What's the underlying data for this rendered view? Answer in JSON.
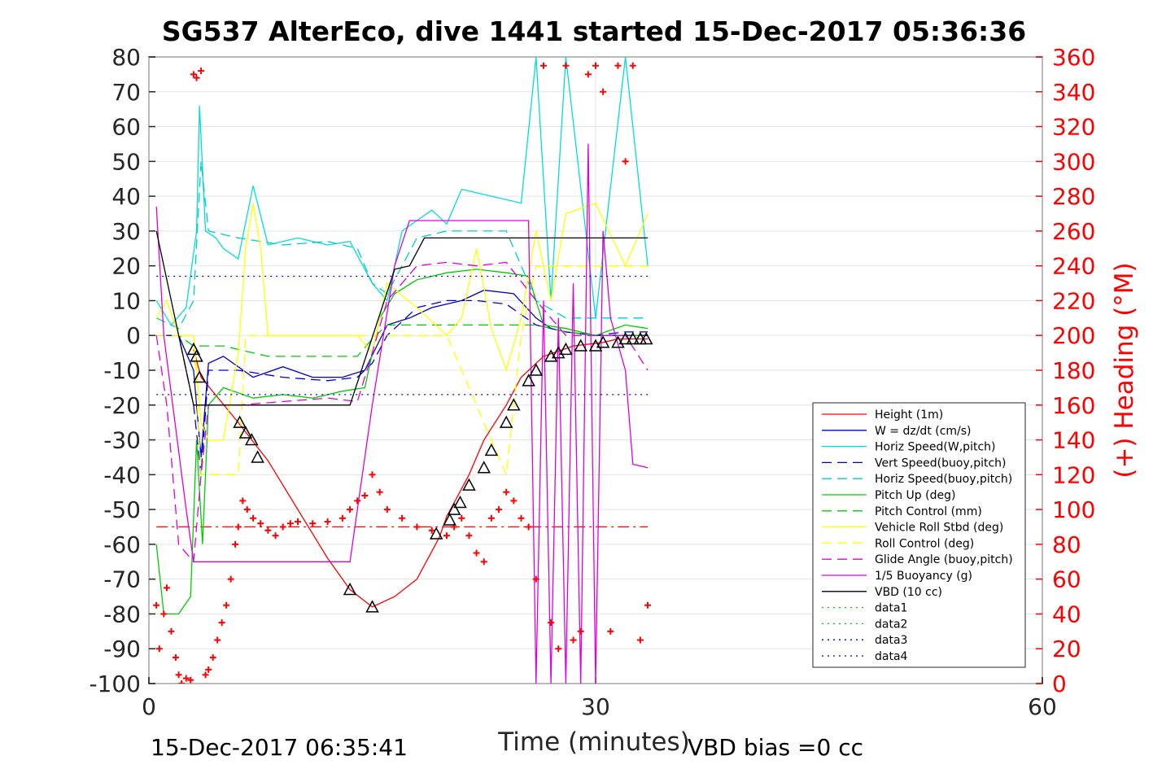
{
  "chart_data": {
    "type": "line",
    "title": "SG537 AlterEco, dive 1441 started 15-Dec-2017 05:36:36",
    "xlabel": "Time (minutes)",
    "ylabel_right": "(+) Heading (°M)",
    "xlim": [
      0,
      60
    ],
    "ylim_left": [
      -100,
      80
    ],
    "ylim_right": [
      0,
      360
    ],
    "x_ticks": [
      "0",
      "30",
      "60"
    ],
    "y_ticks_left": [
      "80",
      "70",
      "60",
      "50",
      "40",
      "30",
      "20",
      "10",
      "0",
      "-10",
      "-20",
      "-30",
      "-40",
      "-50",
      "-60",
      "-70",
      "-80",
      "-90",
      "-100"
    ],
    "y_ticks_right": [
      "360",
      "340",
      "320",
      "300",
      "280",
      "260",
      "240",
      "220",
      "200",
      "180",
      "160",
      "140",
      "120",
      "100",
      "80",
      "60",
      "40",
      "20",
      "0"
    ],
    "footer_left": "15-Dec-2017 06:35:41",
    "footer_right": "VBD bias =0 cc",
    "legend_position": "lower-right",
    "series": [
      {
        "name": "Height (1m)",
        "color": "#ff0000",
        "dash": "solid",
        "axis": "left",
        "x": [
          3.0,
          3.5,
          6,
          8,
          10,
          12,
          13.5,
          15,
          16.5,
          18,
          19.5,
          20,
          20.5,
          21.5,
          22.5,
          24,
          25,
          26.5,
          28.5,
          30.5,
          31.5,
          33.5
        ],
        "y": [
          -4,
          -12,
          -25,
          -36,
          -50,
          -64,
          -73,
          -78,
          -75,
          -70,
          -58,
          -52,
          -48,
          -40,
          -30,
          -20,
          -12,
          -6,
          -3,
          -2,
          -1,
          -1
        ]
      },
      {
        "name": "W = dz/dt (cm/s)",
        "color": "#0000cc",
        "dash": "solid",
        "axis": "left",
        "x": [
          0.5,
          2.0,
          3.0,
          3.5,
          4.0,
          5,
          7,
          9,
          11,
          13,
          14.5,
          16,
          17.5,
          19,
          21,
          22.5,
          24.5,
          26,
          27,
          28,
          30,
          32,
          33.5
        ],
        "y": [
          0,
          0,
          -10,
          -35,
          -8,
          -6,
          -12,
          -9,
          -12,
          -12,
          -10,
          3,
          5,
          8,
          10,
          13,
          12,
          5,
          2,
          1,
          0,
          0,
          0
        ]
      },
      {
        "name": "Horiz Speed(W,pitch)",
        "color": "#00dddd",
        "dash": "solid",
        "axis": "left",
        "x": [
          0.5,
          1.5,
          2.5,
          3.2,
          3.4,
          3.8,
          4.5,
          5,
          6,
          7,
          8,
          10,
          12,
          13.5,
          15,
          16,
          17,
          19,
          20,
          21,
          23,
          25,
          26,
          27,
          28,
          30,
          32,
          33.5
        ],
        "y": [
          10,
          3,
          8,
          30,
          66,
          30,
          28,
          25,
          22,
          43,
          26,
          28,
          26,
          27,
          15,
          10,
          30,
          36,
          32,
          42,
          40,
          38,
          80,
          10,
          80,
          5,
          80,
          20
        ]
      },
      {
        "name": "Vert Speed(buoy,pitch)",
        "color": "#0000cc",
        "dash": "dashed",
        "axis": "left",
        "x": [
          0.5,
          2,
          3,
          3.5,
          4,
          6,
          9,
          12,
          14,
          15,
          16,
          18,
          20,
          22,
          24,
          26,
          28,
          30,
          32,
          33.5
        ],
        "y": [
          0,
          0,
          -20,
          -40,
          -10,
          -10,
          -12,
          -13,
          -12,
          -8,
          0,
          8,
          10,
          10,
          9,
          3,
          1,
          0,
          1,
          1
        ]
      },
      {
        "name": "Horiz Speed(buoy,pitch)",
        "color": "#00cccc",
        "dash": "dashed",
        "axis": "left",
        "x": [
          0.5,
          2,
          3,
          3.5,
          4,
          6,
          9,
          12,
          14,
          15,
          16,
          18,
          20,
          22,
          24,
          26,
          28,
          30,
          32,
          33.5
        ],
        "y": [
          5,
          2,
          10,
          50,
          30,
          28,
          26,
          27,
          25,
          15,
          12,
          28,
          30,
          30,
          30,
          10,
          5,
          5,
          5,
          5
        ]
      },
      {
        "name": "Pitch Up (deg)",
        "color": "#00cc00",
        "dash": "solid",
        "axis": "left",
        "x": [
          0.5,
          1,
          2,
          2.8,
          3.2,
          3.6,
          4,
          5,
          7,
          9,
          11,
          13,
          14.5,
          15.5,
          16.5,
          18,
          20,
          22,
          24,
          25.5,
          26.5,
          28,
          30,
          32,
          33.5
        ],
        "y": [
          -60,
          -80,
          -80,
          -75,
          -30,
          -60,
          -20,
          -15,
          -18,
          -17,
          -18,
          -16,
          -15,
          5,
          12,
          16,
          18,
          19,
          18,
          17,
          3,
          2,
          0,
          3,
          2
        ]
      },
      {
        "name": "Pitch Control (mm)",
        "color": "#00cc00",
        "dash": "dashed",
        "axis": "left",
        "x": [
          0.5,
          2,
          3,
          3.5,
          5,
          8,
          11,
          14,
          15,
          16,
          20,
          24,
          26,
          28,
          30,
          33.5
        ],
        "y": [
          0,
          0,
          -3,
          -3,
          -3,
          -6,
          -6,
          -6,
          -1,
          3,
          3,
          3,
          3,
          1,
          0,
          0
        ]
      },
      {
        "name": "Vehicle Roll Stbd (deg)",
        "color": "#ffff00",
        "dash": "solid",
        "axis": "left",
        "x": [
          0.5,
          1.2,
          2,
          3,
          3.5,
          4,
          5,
          6,
          6.5,
          7,
          7.5,
          8,
          10,
          12,
          14,
          15,
          16,
          18,
          20,
          21,
          22,
          23,
          24,
          25,
          26,
          27,
          28,
          30,
          32,
          33.5
        ],
        "y": [
          5,
          10,
          0,
          0,
          -25,
          -30,
          -30,
          -5,
          25,
          38,
          25,
          0,
          0,
          0,
          0,
          -5,
          15,
          8,
          0,
          5,
          25,
          2,
          -10,
          5,
          30,
          10,
          35,
          38,
          20,
          35
        ]
      },
      {
        "name": "Roll Control (deg)",
        "color": "#ffff00",
        "dash": "dashed",
        "axis": "left",
        "x": [
          0.5,
          2,
          3,
          3.5,
          4,
          6,
          6.5,
          8,
          14,
          16,
          20,
          22,
          24,
          25,
          26,
          30,
          33.5
        ],
        "y": [
          0,
          0,
          0,
          -40,
          -40,
          -40,
          0,
          0,
          0,
          0,
          0,
          -20,
          -40,
          0,
          20,
          20,
          20
        ]
      },
      {
        "name": "Glide Angle (buoy,pitch)",
        "color": "#dd00dd",
        "dash": "dashed",
        "axis": "left",
        "x": [
          0.5,
          1.2,
          2,
          3,
          3.5,
          4,
          6,
          9,
          12,
          14,
          15,
          16,
          18,
          20,
          22,
          24,
          26,
          28,
          30,
          32,
          33.5
        ],
        "y": [
          0,
          -20,
          -60,
          -65,
          -40,
          -20,
          -20,
          -19,
          -18,
          -19,
          -5,
          10,
          20,
          21,
          20,
          21,
          10,
          0,
          0,
          0,
          -10
        ]
      },
      {
        "name": "1/5 Buoyancy (g)",
        "color": "#dd00dd",
        "dash": "solid",
        "axis": "left",
        "x": [
          0.5,
          1.0,
          2.5,
          3.0,
          5,
          8,
          11,
          13.5,
          15,
          16.5,
          17.5,
          20,
          22,
          24,
          25.5,
          26,
          26.5,
          27,
          27.5,
          28,
          28.5,
          29,
          29.5,
          30,
          30.5,
          31,
          32,
          32.5,
          33.5
        ],
        "y": [
          37,
          0,
          -50,
          -65,
          -65,
          -65,
          -65,
          -65,
          -20,
          20,
          33,
          33,
          33,
          33,
          33,
          -100,
          10,
          -100,
          5,
          -100,
          15,
          -100,
          55,
          -100,
          30,
          5,
          -10,
          -37,
          -38
        ]
      },
      {
        "name": "VBD (10 cc)",
        "color": "#000000",
        "dash": "solid",
        "axis": "left",
        "x": [
          0.5,
          3.0,
          13.5,
          16.5,
          17.5,
          18.5,
          25,
          33.5
        ],
        "y": [
          30,
          -20,
          -20,
          19,
          20,
          28,
          28,
          28
        ]
      },
      {
        "name": "data1",
        "color": "#00cc00",
        "dash": "dotted",
        "axis": "left",
        "x": [],
        "y": []
      },
      {
        "name": "data2",
        "color": "#00cc00",
        "dash": "dotted",
        "axis": "left",
        "x": [],
        "y": []
      },
      {
        "name": "data3",
        "color": "#0000cc",
        "dash": "dotted",
        "axis": "left",
        "x": [
          0.5,
          33.5
        ],
        "y": [
          17,
          17
        ]
      },
      {
        "name": "data4",
        "color": "#0000cc",
        "dash": "dotted",
        "axis": "left",
        "x": [
          0.5,
          33.5
        ],
        "y": [
          -17,
          -17
        ]
      }
    ],
    "reference_lines": [
      {
        "color": "#ff0000",
        "dash": "dashdot",
        "axis": "left",
        "x": [
          0.5,
          33.5
        ],
        "y": [
          -55,
          -55
        ]
      }
    ],
    "heading_points": {
      "color": "#ff0000",
      "marker": "+",
      "axis": "right",
      "x": [
        0.5,
        0.7,
        1.0,
        1.2,
        1.5,
        1.8,
        2.0,
        2.2,
        2.5,
        2.8,
        3.0,
        3.2,
        3.5,
        3.8,
        4.0,
        4.3,
        4.6,
        4.9,
        5.2,
        5.5,
        5.8,
        6.0,
        6.3,
        6.6,
        7.0,
        7.5,
        8.0,
        8.5,
        9.0,
        9.5,
        10,
        11,
        12,
        13,
        13.5,
        14,
        14.5,
        15,
        15.5,
        16,
        17,
        18,
        19,
        20,
        20.5,
        21,
        21.5,
        22,
        22.5,
        23,
        23.5,
        24,
        24.5,
        25,
        25.5,
        26,
        26.5,
        27,
        27.5,
        28,
        28.5,
        29,
        29.5,
        30,
        30.5,
        31,
        31.5,
        32,
        32.5,
        33,
        33.5
      ],
      "y": [
        45,
        20,
        40,
        55,
        30,
        15,
        5,
        0,
        3,
        2,
        350,
        348,
        352,
        5,
        8,
        15,
        25,
        35,
        45,
        60,
        80,
        90,
        105,
        100,
        95,
        92,
        88,
        85,
        90,
        92,
        93,
        92,
        93,
        95,
        100,
        105,
        108,
        120,
        110,
        100,
        95,
        90,
        88,
        85,
        90,
        95,
        85,
        75,
        70,
        95,
        100,
        110,
        105,
        95,
        90,
        60,
        355,
        35,
        20,
        355,
        25,
        30,
        350,
        355,
        340,
        30,
        355,
        300,
        355,
        25,
        45
      ]
    },
    "marker_points": {
      "color": "#000000",
      "marker": "triangle",
      "x": [
        3.0,
        3.2,
        3.4,
        6.1,
        6.5,
        6.9,
        7.3,
        13.5,
        15.0,
        19.3,
        20.2,
        20.5,
        20.9,
        21.5,
        22.5,
        23.0,
        24.0,
        24.5,
        25.5,
        26.0,
        27.0,
        27.5,
        28.0,
        29.0,
        30.0,
        30.5,
        31.5,
        32.0,
        32.5,
        33.0,
        33.4
      ],
      "y": [
        -4,
        -6,
        -12,
        -25,
        -28,
        -30,
        -35,
        -73,
        -78,
        -57,
        -53,
        -50,
        -48,
        -43,
        -38,
        -33,
        -25,
        -20,
        -13,
        -10,
        -6,
        -5,
        -4,
        -3,
        -3,
        -2,
        -2,
        -1,
        -1,
        -1,
        -1
      ]
    }
  }
}
